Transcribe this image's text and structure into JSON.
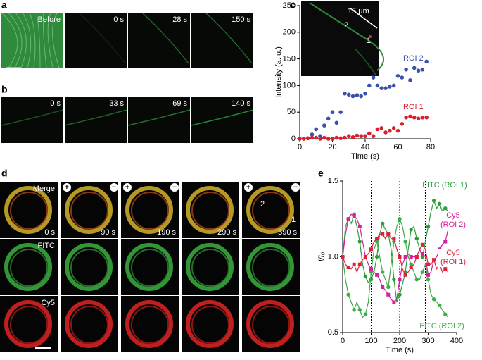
{
  "panels": {
    "a": {
      "label": "a",
      "frames": [
        "Before",
        "0 s",
        "28 s",
        "150 s"
      ]
    },
    "b": {
      "label": "b",
      "frames": [
        "0 s",
        "33 s",
        "69 s",
        "140 s"
      ]
    },
    "c": {
      "label": "c"
    },
    "d": {
      "label": "d",
      "row_labels": [
        "Merge",
        "FITC",
        "Cy5"
      ],
      "times": [
        "0 s",
        "90 s",
        "190 s",
        "290 s",
        "390 s"
      ],
      "roi_labels": [
        "2",
        "1"
      ],
      "signs": [
        "+",
        "−",
        "+",
        "−",
        "+",
        "−"
      ]
    },
    "e": {
      "label": "e"
    }
  },
  "chart_data": [
    {
      "type": "scatter",
      "xlabel": "Time (s)",
      "ylabel": "Intensity (a. u.)",
      "annotations": [
        "15 μm",
        "2",
        "1"
      ],
      "x": [
        0,
        2.5,
        5,
        7.5,
        10,
        12.5,
        15,
        17.5,
        20,
        22.5,
        25,
        27.5,
        30,
        32.5,
        35,
        37.5,
        40,
        42.5,
        45,
        47.5,
        50,
        52.5,
        55,
        57.5,
        60,
        62.5,
        65,
        67.5,
        70,
        72.5,
        75,
        77.5
      ],
      "series": [
        {
          "name": "ROI 2",
          "color": "#3a4fb0",
          "values": [
            0,
            0,
            1,
            8,
            18,
            5,
            25,
            38,
            50,
            30,
            50,
            85,
            83,
            80,
            82,
            80,
            85,
            100,
            115,
            100,
            95,
            95,
            98,
            100,
            118,
            115,
            130,
            110,
            133,
            128,
            130,
            145
          ]
        },
        {
          "name": "ROI 1",
          "color": "#d9202e",
          "values": [
            0,
            0,
            1,
            2,
            2,
            0,
            2,
            0,
            0,
            2,
            1,
            2,
            5,
            3,
            6,
            5,
            5,
            10,
            5,
            18,
            20,
            12,
            15,
            20,
            15,
            28,
            40,
            42,
            40,
            38,
            40,
            40
          ]
        }
      ],
      "xlim": [
        0,
        80
      ],
      "xticks": [
        0,
        20,
        40,
        60,
        80
      ],
      "ylim": [
        0,
        250
      ],
      "yticks": [
        0,
        50,
        100,
        150,
        200,
        250
      ]
    },
    {
      "type": "line",
      "xlabel": "Time (s)",
      "ylabel": "I/I₀",
      "markers": true,
      "vlines": [
        100,
        200,
        290
      ],
      "x": [
        0,
        10,
        20,
        30,
        40,
        50,
        60,
        70,
        80,
        90,
        100,
        110,
        120,
        130,
        140,
        150,
        160,
        170,
        180,
        190,
        200,
        210,
        220,
        230,
        240,
        250,
        260,
        270,
        280,
        290,
        300,
        310,
        320,
        330,
        340,
        350,
        360,
        370
      ],
      "series": [
        {
          "name": "FITC (ROI 1)",
          "color": "#2e9e3a",
          "values": [
            1.0,
            1.2,
            1.25,
            1.22,
            1.28,
            1.2,
            1.1,
            0.95,
            0.87,
            0.83,
            0.85,
            0.9,
            1.0,
            1.15,
            1.22,
            1.18,
            1.15,
            1.05,
            0.85,
            0.7,
            0.75,
            0.82,
            0.9,
            1.05,
            1.18,
            1.2,
            1.12,
            1.05,
            1.0,
            1.1,
            1.2,
            1.3,
            1.37,
            1.32,
            1.35,
            1.3,
            1.32,
            1.3
          ]
        },
        {
          "name": "FITC (ROI 2)",
          "color": "#3dad4a",
          "values": [
            1.0,
            0.85,
            0.75,
            0.7,
            0.65,
            0.7,
            0.65,
            0.6,
            0.62,
            0.7,
            0.9,
            1.05,
            1.1,
            1.0,
            0.9,
            0.85,
            0.8,
            0.95,
            1.1,
            1.2,
            1.25,
            1.2,
            1.1,
            1.0,
            0.95,
            0.9,
            0.85,
            0.85,
            0.9,
            0.95,
            0.85,
            0.75,
            0.72,
            0.7,
            0.68,
            0.65,
            0.62,
            0.6
          ]
        },
        {
          "name": "Cy5 (ROI 2)",
          "color": "#d61f9a",
          "values": [
            1.0,
            1.15,
            1.25,
            1.28,
            1.27,
            1.25,
            1.2,
            1.1,
            1.0,
            0.95,
            0.92,
            0.9,
            0.88,
            0.85,
            0.8,
            0.78,
            0.75,
            0.72,
            0.7,
            0.72,
            0.85,
            0.95,
            1.0,
            1.02,
            1.0,
            1.0,
            1.0,
            1.05,
            1.02,
            1.0,
            0.88,
            0.9,
            0.98,
            1.0,
            1.05,
            1.08,
            1.1,
            1.18
          ]
        },
        {
          "name": "Cy5 (ROI 1)",
          "color": "#e0203a",
          "values": [
            1.0,
            0.95,
            0.93,
            0.92,
            0.95,
            0.9,
            0.95,
            0.98,
            1.0,
            1.02,
            1.05,
            1.1,
            1.12,
            1.15,
            1.15,
            1.12,
            1.15,
            1.12,
            1.12,
            1.05,
            1.0,
            0.92,
            0.88,
            0.9,
            0.93,
            0.95,
            1.0,
            1.05,
            1.08,
            1.05,
            0.95,
            0.95,
            0.98,
            0.92,
            0.95,
            0.9,
            0.92,
            0.9
          ]
        }
      ],
      "xlim": [
        0,
        400
      ],
      "xticks": [
        0,
        100,
        200,
        300,
        400
      ],
      "ylim": [
        0.5,
        1.5
      ],
      "yticks": [
        0.5,
        {
          "value": 1,
          "label": "1.0"
        },
        1.5
      ]
    }
  ]
}
